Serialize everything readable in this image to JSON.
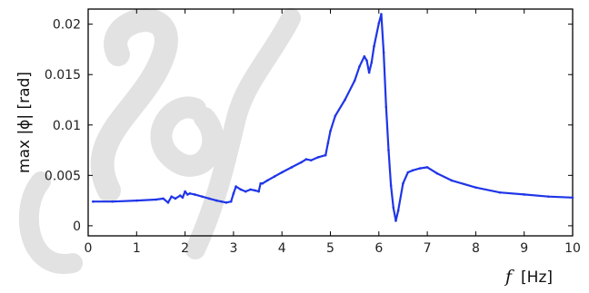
{
  "chart_data": {
    "type": "line",
    "title": "",
    "ylabel": "max |ϕ| [rad]",
    "xlabel_symbol": "f",
    "xlabel_unit": "[Hz]",
    "xlim": [
      0,
      10
    ],
    "ylim": [
      -0.001,
      0.0215
    ],
    "x_ticks": [
      0,
      1,
      2,
      3,
      4,
      5,
      6,
      7,
      8,
      9,
      10
    ],
    "x_tick_labels": [
      "0",
      "1",
      "2",
      "3",
      "4",
      "5",
      "6",
      "7",
      "8",
      "9",
      "10"
    ],
    "y_ticks": [
      0,
      0.005,
      0.01,
      0.015,
      0.02
    ],
    "y_tick_labels": [
      "0",
      "0.005",
      "0.01",
      "0.015",
      "0.02"
    ],
    "grid": false,
    "legend": "none",
    "series_color": "#1f35e8",
    "series": [
      {
        "x": [
          0.1,
          0.5,
          1.0,
          1.4,
          1.55,
          1.65,
          1.72,
          1.8,
          1.9,
          1.95,
          2.0,
          2.05,
          2.1,
          2.2,
          2.35,
          2.5,
          2.65,
          2.75,
          2.85,
          2.95,
          3.0,
          3.05,
          3.15,
          3.25,
          3.35,
          3.45,
          3.52,
          3.56,
          3.6,
          3.7,
          3.85,
          4.0,
          4.2,
          4.4,
          4.5,
          4.6,
          4.75,
          4.9,
          4.95,
          5.0,
          5.1,
          5.3,
          5.5,
          5.6,
          5.7,
          5.75,
          5.8,
          5.85,
          5.9,
          6.0,
          6.05,
          6.1,
          6.15,
          6.2,
          6.25,
          6.3,
          6.35,
          6.4,
          6.5,
          6.6,
          6.7,
          6.85,
          7.0,
          7.2,
          7.5,
          8.0,
          8.5,
          9.0,
          9.5,
          10.0
        ],
        "y": [
          0.0024,
          0.0024,
          0.0025,
          0.0026,
          0.0027,
          0.0023,
          0.0029,
          0.0027,
          0.003,
          0.0028,
          0.0034,
          0.0031,
          0.0032,
          0.0031,
          0.0029,
          0.0027,
          0.0025,
          0.0024,
          0.0023,
          0.0024,
          0.0032,
          0.0039,
          0.0036,
          0.0034,
          0.0036,
          0.0035,
          0.0034,
          0.0042,
          0.0042,
          0.0045,
          0.0049,
          0.0053,
          0.0058,
          0.0063,
          0.0066,
          0.0065,
          0.0068,
          0.007,
          0.0082,
          0.0094,
          0.0109,
          0.0125,
          0.0144,
          0.0158,
          0.0168,
          0.0164,
          0.0152,
          0.0162,
          0.0178,
          0.0201,
          0.021,
          0.0172,
          0.0118,
          0.0075,
          0.004,
          0.0018,
          0.0005,
          0.0015,
          0.0042,
          0.0053,
          0.0055,
          0.0057,
          0.0058,
          0.0052,
          0.0045,
          0.0038,
          0.0033,
          0.0031,
          0.0029,
          0.0028
        ]
      }
    ]
  }
}
